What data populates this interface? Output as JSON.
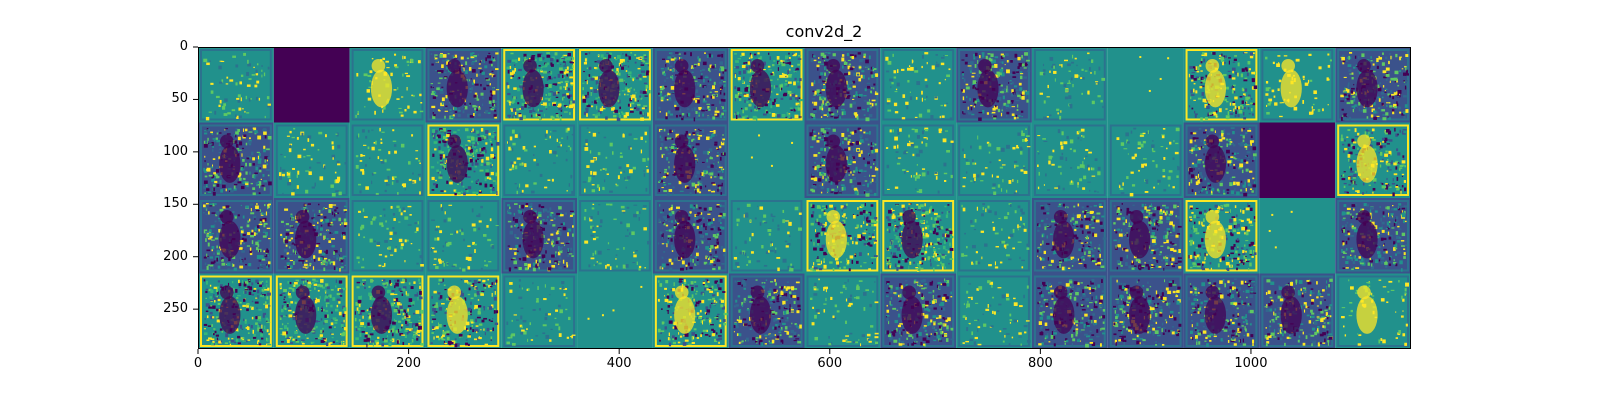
{
  "figure": {
    "title": "conv2d_2"
  },
  "axes": {
    "x_ticks": [
      "0",
      "200",
      "400",
      "600",
      "800",
      "1000"
    ],
    "y_ticks": [
      "0",
      "50",
      "100",
      "150",
      "200",
      "250"
    ],
    "x_range": [
      0,
      1152
    ],
    "y_range": [
      288,
      0
    ]
  },
  "grid": {
    "rows": 4,
    "cols": 16,
    "tiles": [
      {
        "kind": "sparse"
      },
      {
        "kind": "blank"
      },
      {
        "kind": "sparse-bright"
      },
      {
        "kind": "dense-dark"
      },
      {
        "kind": "dense-bright"
      },
      {
        "kind": "dense-bright"
      },
      {
        "kind": "dense-dark"
      },
      {
        "kind": "dense-bright"
      },
      {
        "kind": "dense-dark"
      },
      {
        "kind": "sparse"
      },
      {
        "kind": "dense-dark"
      },
      {
        "kind": "sparse"
      },
      {
        "kind": "flat"
      },
      {
        "kind": "bright-frame"
      },
      {
        "kind": "sparse-bright"
      },
      {
        "kind": "dense-dark"
      },
      {
        "kind": "dense-dark"
      },
      {
        "kind": "sparse"
      },
      {
        "kind": "sparse"
      },
      {
        "kind": "dense-bright"
      },
      {
        "kind": "sparse"
      },
      {
        "kind": "sparse"
      },
      {
        "kind": "dense-dark"
      },
      {
        "kind": "flat"
      },
      {
        "kind": "dense-dark"
      },
      {
        "kind": "sparse"
      },
      {
        "kind": "sparse"
      },
      {
        "kind": "sparse"
      },
      {
        "kind": "sparse"
      },
      {
        "kind": "dense-dark"
      },
      {
        "kind": "blank"
      },
      {
        "kind": "bright-frame"
      },
      {
        "kind": "dense-dark"
      },
      {
        "kind": "dense-dark"
      },
      {
        "kind": "sparse"
      },
      {
        "kind": "sparse"
      },
      {
        "kind": "dense-dark"
      },
      {
        "kind": "sparse"
      },
      {
        "kind": "dense-dark"
      },
      {
        "kind": "sparse"
      },
      {
        "kind": "bright-frame"
      },
      {
        "kind": "dense-bright"
      },
      {
        "kind": "sparse"
      },
      {
        "kind": "dense-dark"
      },
      {
        "kind": "dense-dark"
      },
      {
        "kind": "bright-frame"
      },
      {
        "kind": "flat"
      },
      {
        "kind": "dense-dark"
      },
      {
        "kind": "dense-bright"
      },
      {
        "kind": "dense-bright"
      },
      {
        "kind": "dense-bright"
      },
      {
        "kind": "bright-frame"
      },
      {
        "kind": "sparse"
      },
      {
        "kind": "flat"
      },
      {
        "kind": "bright-frame"
      },
      {
        "kind": "dense-dark"
      },
      {
        "kind": "sparse"
      },
      {
        "kind": "dense-dark"
      },
      {
        "kind": "sparse"
      },
      {
        "kind": "dense-dark"
      },
      {
        "kind": "dense-dark"
      },
      {
        "kind": "dense-dark"
      },
      {
        "kind": "dense-dark"
      },
      {
        "kind": "sparse-bright"
      }
    ]
  },
  "colors": {
    "background": "#ffffff",
    "teal": "#21918c",
    "yellow": "#fde725",
    "dark": "#440154",
    "blue": "#3b528b",
    "green": "#5ec962"
  },
  "colormap": "viridis"
}
